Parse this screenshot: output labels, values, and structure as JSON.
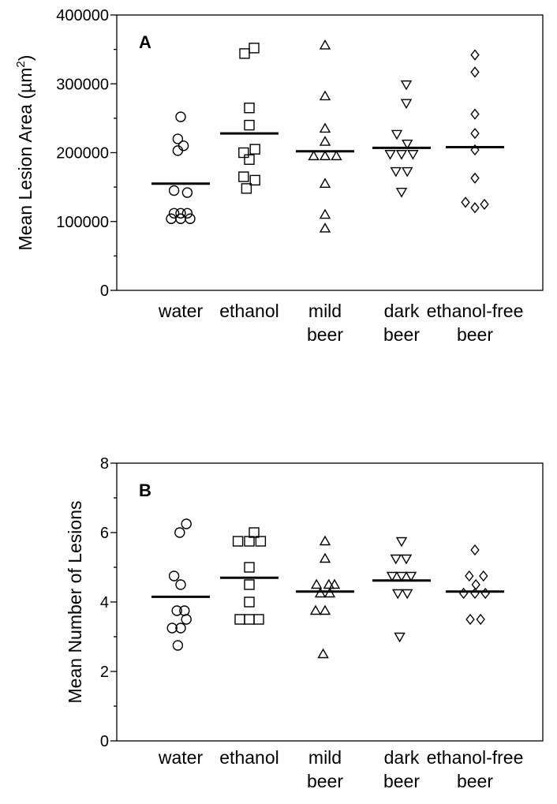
{
  "chart_data": [
    {
      "type": "scatter",
      "panel_label": "A",
      "ylabel": "Mean Lesion Area (µm",
      "ylabel_superscript": "2",
      "ylabel_close": ")",
      "ylim": [
        0,
        400000
      ],
      "yticks": [
        "0",
        "100000",
        "200000",
        "300000",
        "400000"
      ],
      "minor_ytick_step": 50000,
      "categories": [
        {
          "lines": [
            "water"
          ]
        },
        {
          "lines": [
            "ethanol"
          ]
        },
        {
          "lines": [
            "mild",
            "beer"
          ]
        },
        {
          "lines": [
            "dark",
            "beer"
          ]
        },
        {
          "lines": [
            "ethanol-free",
            "beer"
          ]
        }
      ],
      "series": [
        {
          "marker": "circle",
          "mean": 155000,
          "points": [
            [
              0,
              252000
            ],
            [
              -0.3,
              220000
            ],
            [
              0.3,
              210000
            ],
            [
              -0.3,
              203000
            ],
            [
              -0.7,
              145000
            ],
            [
              0.7,
              142000
            ],
            [
              -0.7,
              112000
            ],
            [
              0.7,
              112000
            ],
            [
              0,
              112000
            ],
            [
              -1,
              104000
            ],
            [
              0,
              104000
            ],
            [
              1,
              104000
            ]
          ]
        },
        {
          "marker": "square",
          "mean": 228000,
          "points": [
            [
              -0.5,
              344000
            ],
            [
              0.5,
              352000
            ],
            [
              0,
              265000
            ],
            [
              0,
              240000
            ],
            [
              -0.6,
              200000
            ],
            [
              0.6,
              205000
            ],
            [
              0,
              190000
            ],
            [
              -0.6,
              165000
            ],
            [
              0.6,
              160000
            ],
            [
              -0.3,
              148000
            ]
          ]
        },
        {
          "marker": "triangle-up",
          "mean": 202000,
          "points": [
            [
              0,
              356000
            ],
            [
              0,
              282000
            ],
            [
              0,
              235000
            ],
            [
              0,
              216000
            ],
            [
              -1.2,
              195000
            ],
            [
              0,
              195000
            ],
            [
              1.2,
              195000
            ],
            [
              0,
              155000
            ],
            [
              0,
              110000
            ],
            [
              0,
              90000
            ]
          ]
        },
        {
          "marker": "triangle-down",
          "mean": 207000,
          "points": [
            [
              0.5,
              299000
            ],
            [
              0.5,
              272000
            ],
            [
              -0.5,
              227000
            ],
            [
              0.6,
              213000
            ],
            [
              -1.2,
              198000
            ],
            [
              0,
              198000
            ],
            [
              1.2,
              198000
            ],
            [
              -0.6,
              173000
            ],
            [
              0.6,
              173000
            ],
            [
              0,
              143000
            ]
          ]
        },
        {
          "marker": "diamond",
          "mean": 208000,
          "points": [
            [
              0,
              342000
            ],
            [
              0,
              317000
            ],
            [
              0,
              256000
            ],
            [
              0,
              228000
            ],
            [
              0,
              204000
            ],
            [
              0,
              163000
            ],
            [
              -1,
              128000
            ],
            [
              1,
              125000
            ],
            [
              0,
              120000
            ]
          ]
        }
      ]
    },
    {
      "type": "scatter",
      "panel_label": "B",
      "ylabel": "Mean Number of Lesions",
      "ylim": [
        0,
        8
      ],
      "yticks": [
        "0",
        "2",
        "4",
        "6",
        "8"
      ],
      "minor_ytick_step": 1,
      "categories": [
        {
          "lines": [
            "water"
          ]
        },
        {
          "lines": [
            "ethanol"
          ]
        },
        {
          "lines": [
            "mild",
            "beer"
          ]
        },
        {
          "lines": [
            "dark",
            "beer"
          ]
        },
        {
          "lines": [
            "ethanol-free",
            "beer"
          ]
        }
      ],
      "series": [
        {
          "marker": "circle",
          "mean": 4.15,
          "points": [
            [
              0.6,
              6.25
            ],
            [
              -0.1,
              6.0
            ],
            [
              -0.7,
              4.75
            ],
            [
              0,
              4.5
            ],
            [
              -0.4,
              3.75
            ],
            [
              0.4,
              3.75
            ],
            [
              0.6,
              3.5
            ],
            [
              -0.9,
              3.25
            ],
            [
              0,
              3.25
            ],
            [
              -0.3,
              2.75
            ]
          ]
        },
        {
          "marker": "square",
          "mean": 4.7,
          "points": [
            [
              0.5,
              6.0
            ],
            [
              -1.2,
              5.75
            ],
            [
              0,
              5.75
            ],
            [
              1.2,
              5.75
            ],
            [
              0,
              5.0
            ],
            [
              0,
              4.5
            ],
            [
              0,
              4.0
            ],
            [
              -1,
              3.5
            ],
            [
              0,
              3.5
            ],
            [
              1,
              3.5
            ]
          ]
        },
        {
          "marker": "triangle-up",
          "mean": 4.3,
          "points": [
            [
              0,
              5.75
            ],
            [
              0,
              5.25
            ],
            [
              -0.9,
              4.5
            ],
            [
              0.4,
              4.5
            ],
            [
              1,
              4.5
            ],
            [
              -0.5,
              4.25
            ],
            [
              0.5,
              4.25
            ],
            [
              -1,
              3.75
            ],
            [
              0,
              3.75
            ],
            [
              -0.2,
              2.5
            ]
          ]
        },
        {
          "marker": "triangle-down",
          "mean": 4.62,
          "points": [
            [
              0,
              5.75
            ],
            [
              -0.6,
              5.25
            ],
            [
              0.5,
              5.25
            ],
            [
              -1,
              4.75
            ],
            [
              0,
              4.75
            ],
            [
              1,
              4.75
            ],
            [
              -0.4,
              4.25
            ],
            [
              0.6,
              4.25
            ],
            [
              -0.2,
              3.0
            ]
          ]
        },
        {
          "marker": "diamond",
          "mean": 4.3,
          "points": [
            [
              0,
              5.5
            ],
            [
              -0.6,
              4.75
            ],
            [
              0.9,
              4.75
            ],
            [
              0.1,
              4.5
            ],
            [
              -1.2,
              4.25
            ],
            [
              0,
              4.25
            ],
            [
              1.1,
              4.25
            ],
            [
              -0.5,
              3.5
            ],
            [
              0.6,
              3.5
            ]
          ]
        }
      ]
    }
  ]
}
